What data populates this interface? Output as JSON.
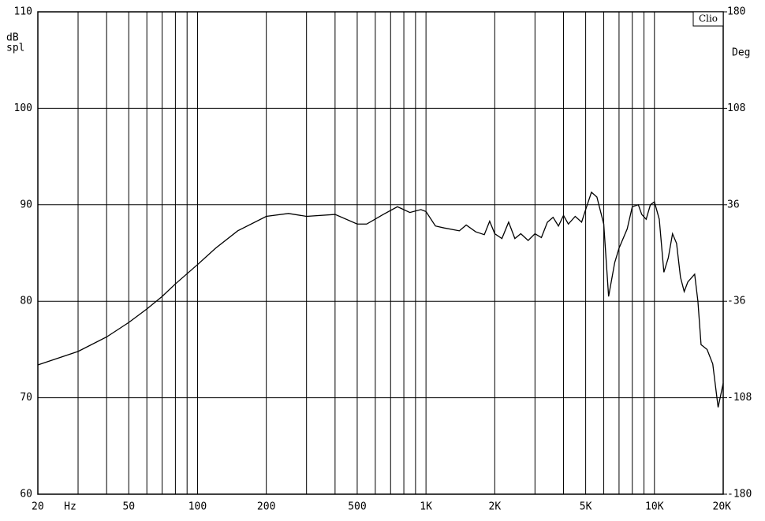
{
  "chart_data": {
    "type": "line",
    "x_scale": "log",
    "grid": true,
    "y_label_lines": [
      "dB",
      "spl"
    ],
    "y2_label": "Deg",
    "x_unit": "Hz",
    "badge": "Clio",
    "xlim": [
      20,
      20000
    ],
    "xticks": [
      20,
      50,
      100,
      200,
      500,
      {
        "value": 1000,
        "label": "1K"
      },
      {
        "value": 2000,
        "label": "2K"
      },
      {
        "value": 5000,
        "label": "5K"
      },
      {
        "value": 10000,
        "label": "10K"
      },
      {
        "value": 20000,
        "label": "20K"
      }
    ],
    "x_minor_ticks": [
      30,
      40,
      60,
      70,
      80,
      90,
      300,
      400,
      600,
      700,
      800,
      900,
      3000,
      4000,
      6000,
      7000,
      8000,
      9000
    ],
    "x_unit_at": 30,
    "ylim": [
      60,
      110
    ],
    "yticks": [
      60,
      70,
      80,
      90,
      100,
      110
    ],
    "y2lim": [
      -180,
      180
    ],
    "y2ticks": [
      -180,
      -108,
      -36,
      36,
      108,
      180
    ],
    "series": [
      {
        "name": "SPL",
        "color": "#000000",
        "x": [
          20,
          30,
          40,
          50,
          60,
          70,
          80,
          100,
          120,
          150,
          200,
          250,
          300,
          400,
          500,
          550,
          650,
          750,
          850,
          950,
          1000,
          1100,
          1200,
          1400,
          1500,
          1650,
          1800,
          1900,
          2000,
          2150,
          2300,
          2450,
          2600,
          2800,
          3000,
          3200,
          3400,
          3600,
          3800,
          4000,
          4200,
          4500,
          4800,
          5000,
          5300,
          5600,
          6000,
          6300,
          6700,
          7000,
          7600,
          8000,
          8500,
          8800,
          9200,
          9600,
          10000,
          10500,
          11000,
          11500,
          12000,
          12500,
          13000,
          13500,
          14000,
          15000,
          15500,
          16000,
          17000,
          18000,
          19000,
          20000
        ],
        "values": [
          73.4,
          74.8,
          76.3,
          77.8,
          79.2,
          80.5,
          81.8,
          83.8,
          85.5,
          87.3,
          88.8,
          89.1,
          88.8,
          89.0,
          88.0,
          88.0,
          89.0,
          89.8,
          89.2,
          89.5,
          89.3,
          87.8,
          87.6,
          87.3,
          87.9,
          87.2,
          86.9,
          88.3,
          87.0,
          86.5,
          88.2,
          86.5,
          87.0,
          86.3,
          87.0,
          86.6,
          88.2,
          88.7,
          87.8,
          88.9,
          88.0,
          88.8,
          88.2,
          89.5,
          91.3,
          90.8,
          88.0,
          80.5,
          84.0,
          85.5,
          87.5,
          89.8,
          90.0,
          89.0,
          88.5,
          90.0,
          90.3,
          88.5,
          83.0,
          84.5,
          87.0,
          86.0,
          82.5,
          81.0,
          82.0,
          82.8,
          80.0,
          75.5,
          75.0,
          73.5,
          69.0,
          71.5
        ]
      }
    ]
  }
}
